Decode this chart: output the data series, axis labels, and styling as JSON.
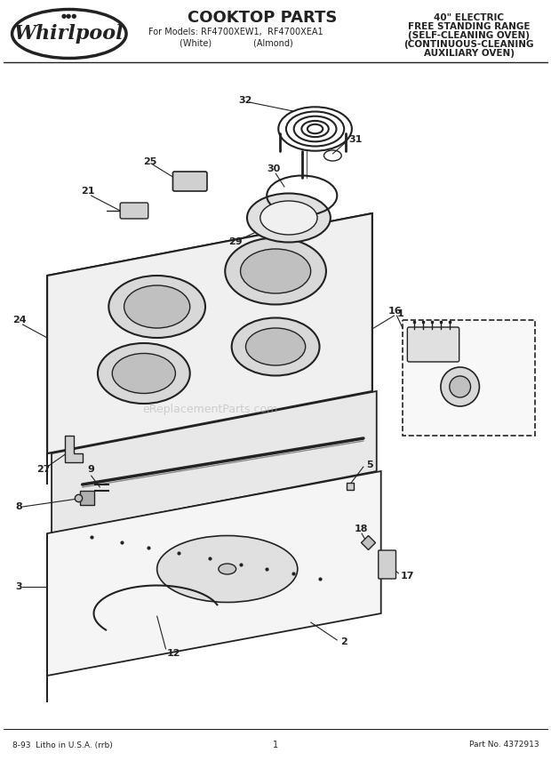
{
  "title": "COOKTOP PARTS",
  "subtitle_line1": "For Models: RF4700XEW1,  RF4700XEA1",
  "subtitle_line2": "(White)          (Almond)",
  "right_title_line1": "40\" ELECTRIC",
  "right_title_line2": "FREE STANDING RANGE",
  "right_title_line3": "(SELF-CLEANING OVEN)",
  "right_title_line4": "(CONTINUOUS-CLEANING",
  "right_title_line5": "AUXILIARY OVEN)",
  "footer_left": "8-93  Litho in U.S.A. (rrb)",
  "footer_center": "1",
  "footer_right": "Part No. 4372913",
  "bg_color": "#ffffff",
  "line_color": "#222222",
  "part_numbers": [
    1,
    2,
    3,
    5,
    8,
    9,
    12,
    16,
    17,
    18,
    21,
    24,
    25,
    27,
    29,
    30,
    31,
    32
  ],
  "watermark": "eReplacementParts.com"
}
